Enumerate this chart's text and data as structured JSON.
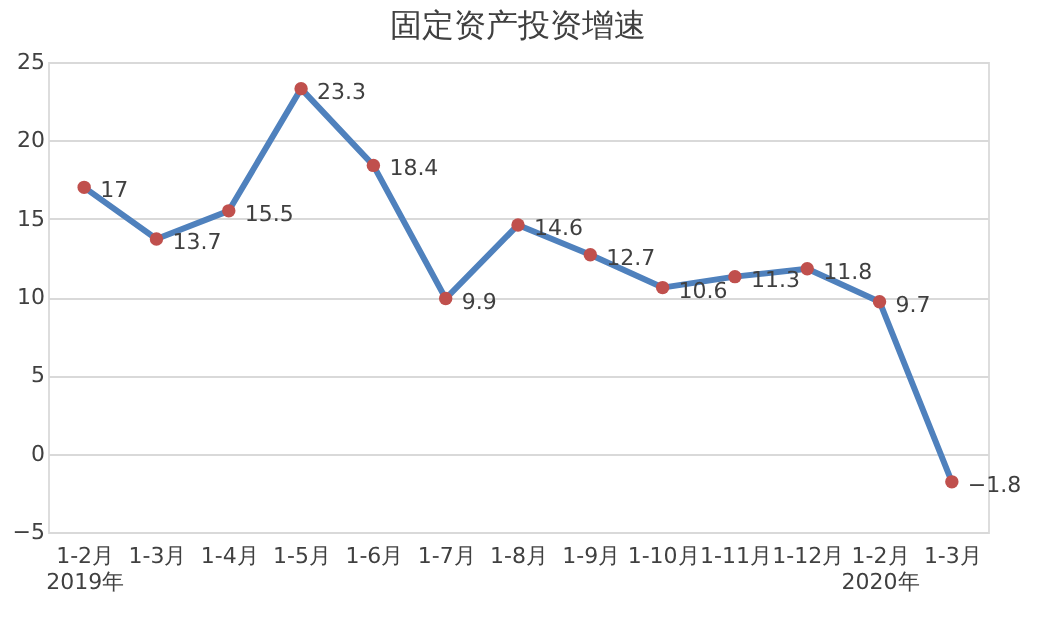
{
  "chart_data": {
    "type": "line",
    "title": "固定资产投资增速",
    "categories": [
      "1-2月\n2019年",
      "1-3月",
      "1-4月",
      "1-5月",
      "1-6月",
      "1-7月",
      "1-8月",
      "1-9月",
      "1-10月",
      "1-11月",
      "1-12月",
      "1-2月\n2020年",
      "1-3月"
    ],
    "series": [
      {
        "color": "#4f81bd",
        "colors": [
          "#c0504d",
          "#c0504d",
          "#c0504d",
          "#c0504d",
          "#c0504d",
          "#c0504d",
          "#c0504d",
          "#c0504d",
          "#c0504d",
          "#c0504d",
          "#c0504d",
          "#c0504d",
          "#c0504d"
        ],
        "values": [
          17,
          13.7,
          15.5,
          23.3,
          18.4,
          9.9,
          14.6,
          12.7,
          10.6,
          11.3,
          11.8,
          9.7,
          -1.8
        ]
      }
    ],
    "ylim": [
      -5,
      25
    ],
    "yticks": [
      -5,
      0,
      5,
      10,
      15,
      20,
      25
    ],
    "grid": "y",
    "marker": "circle",
    "data_labels": true
  }
}
